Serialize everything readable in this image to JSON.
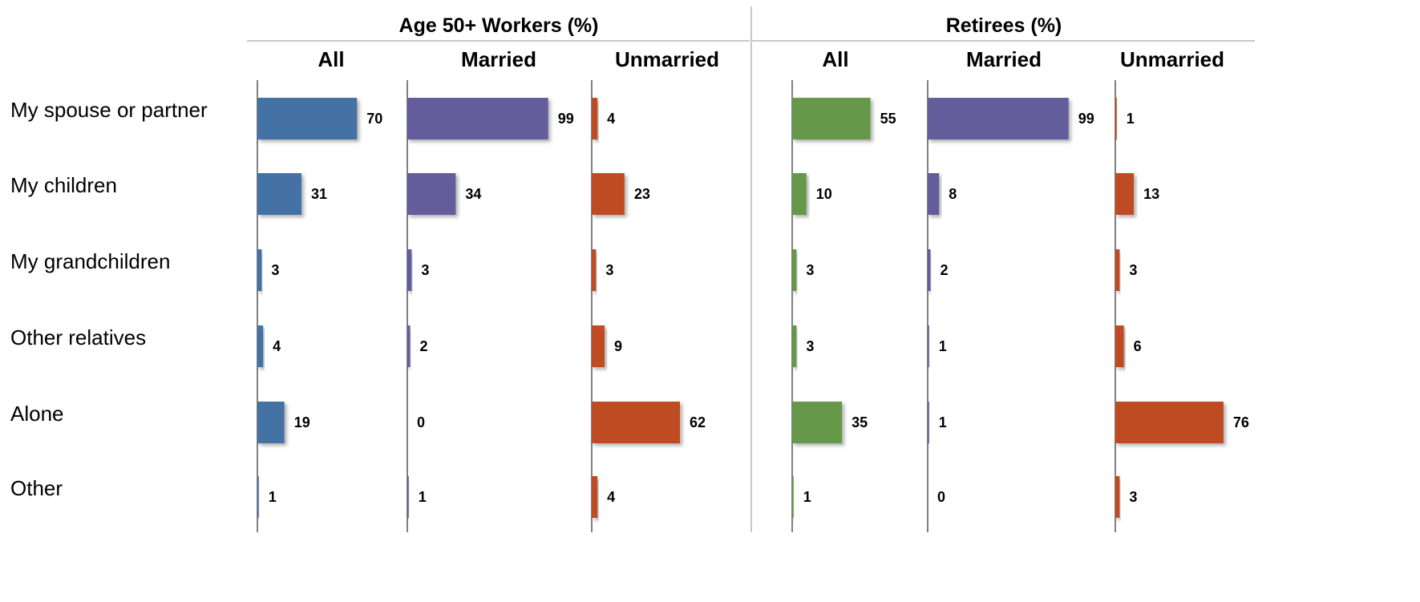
{
  "chart_data": {
    "type": "bar",
    "orientation": "horizontal",
    "categories": [
      "My spouse or partner",
      "My children",
      "My grandchildren",
      "Other relatives",
      "Alone",
      "Other"
    ],
    "groups": [
      {
        "title": "Age 50+ Workers (%)",
        "panels": [
          {
            "title": "All",
            "color": "#4472A4",
            "values": [
              70,
              31,
              3,
              4,
              19,
              1
            ]
          },
          {
            "title": "Married",
            "color": "#635D9B",
            "values": [
              99,
              34,
              3,
              2,
              0,
              1
            ]
          },
          {
            "title": "Unmarried",
            "color": "#BE4B23",
            "values": [
              4,
              23,
              3,
              9,
              62,
              4
            ]
          }
        ]
      },
      {
        "title": "Retirees (%)",
        "panels": [
          {
            "title": "All",
            "color": "#66984A",
            "values": [
              55,
              10,
              3,
              3,
              35,
              1
            ]
          },
          {
            "title": "Married",
            "color": "#635D9B",
            "values": [
              99,
              8,
              2,
              1,
              1,
              0
            ]
          },
          {
            "title": "Unmarried",
            "color": "#BE4B23",
            "values": [
              1,
              13,
              3,
              6,
              76,
              3
            ]
          }
        ]
      }
    ],
    "divider_color": "#C8C8C8",
    "axis_color": "#000000"
  }
}
